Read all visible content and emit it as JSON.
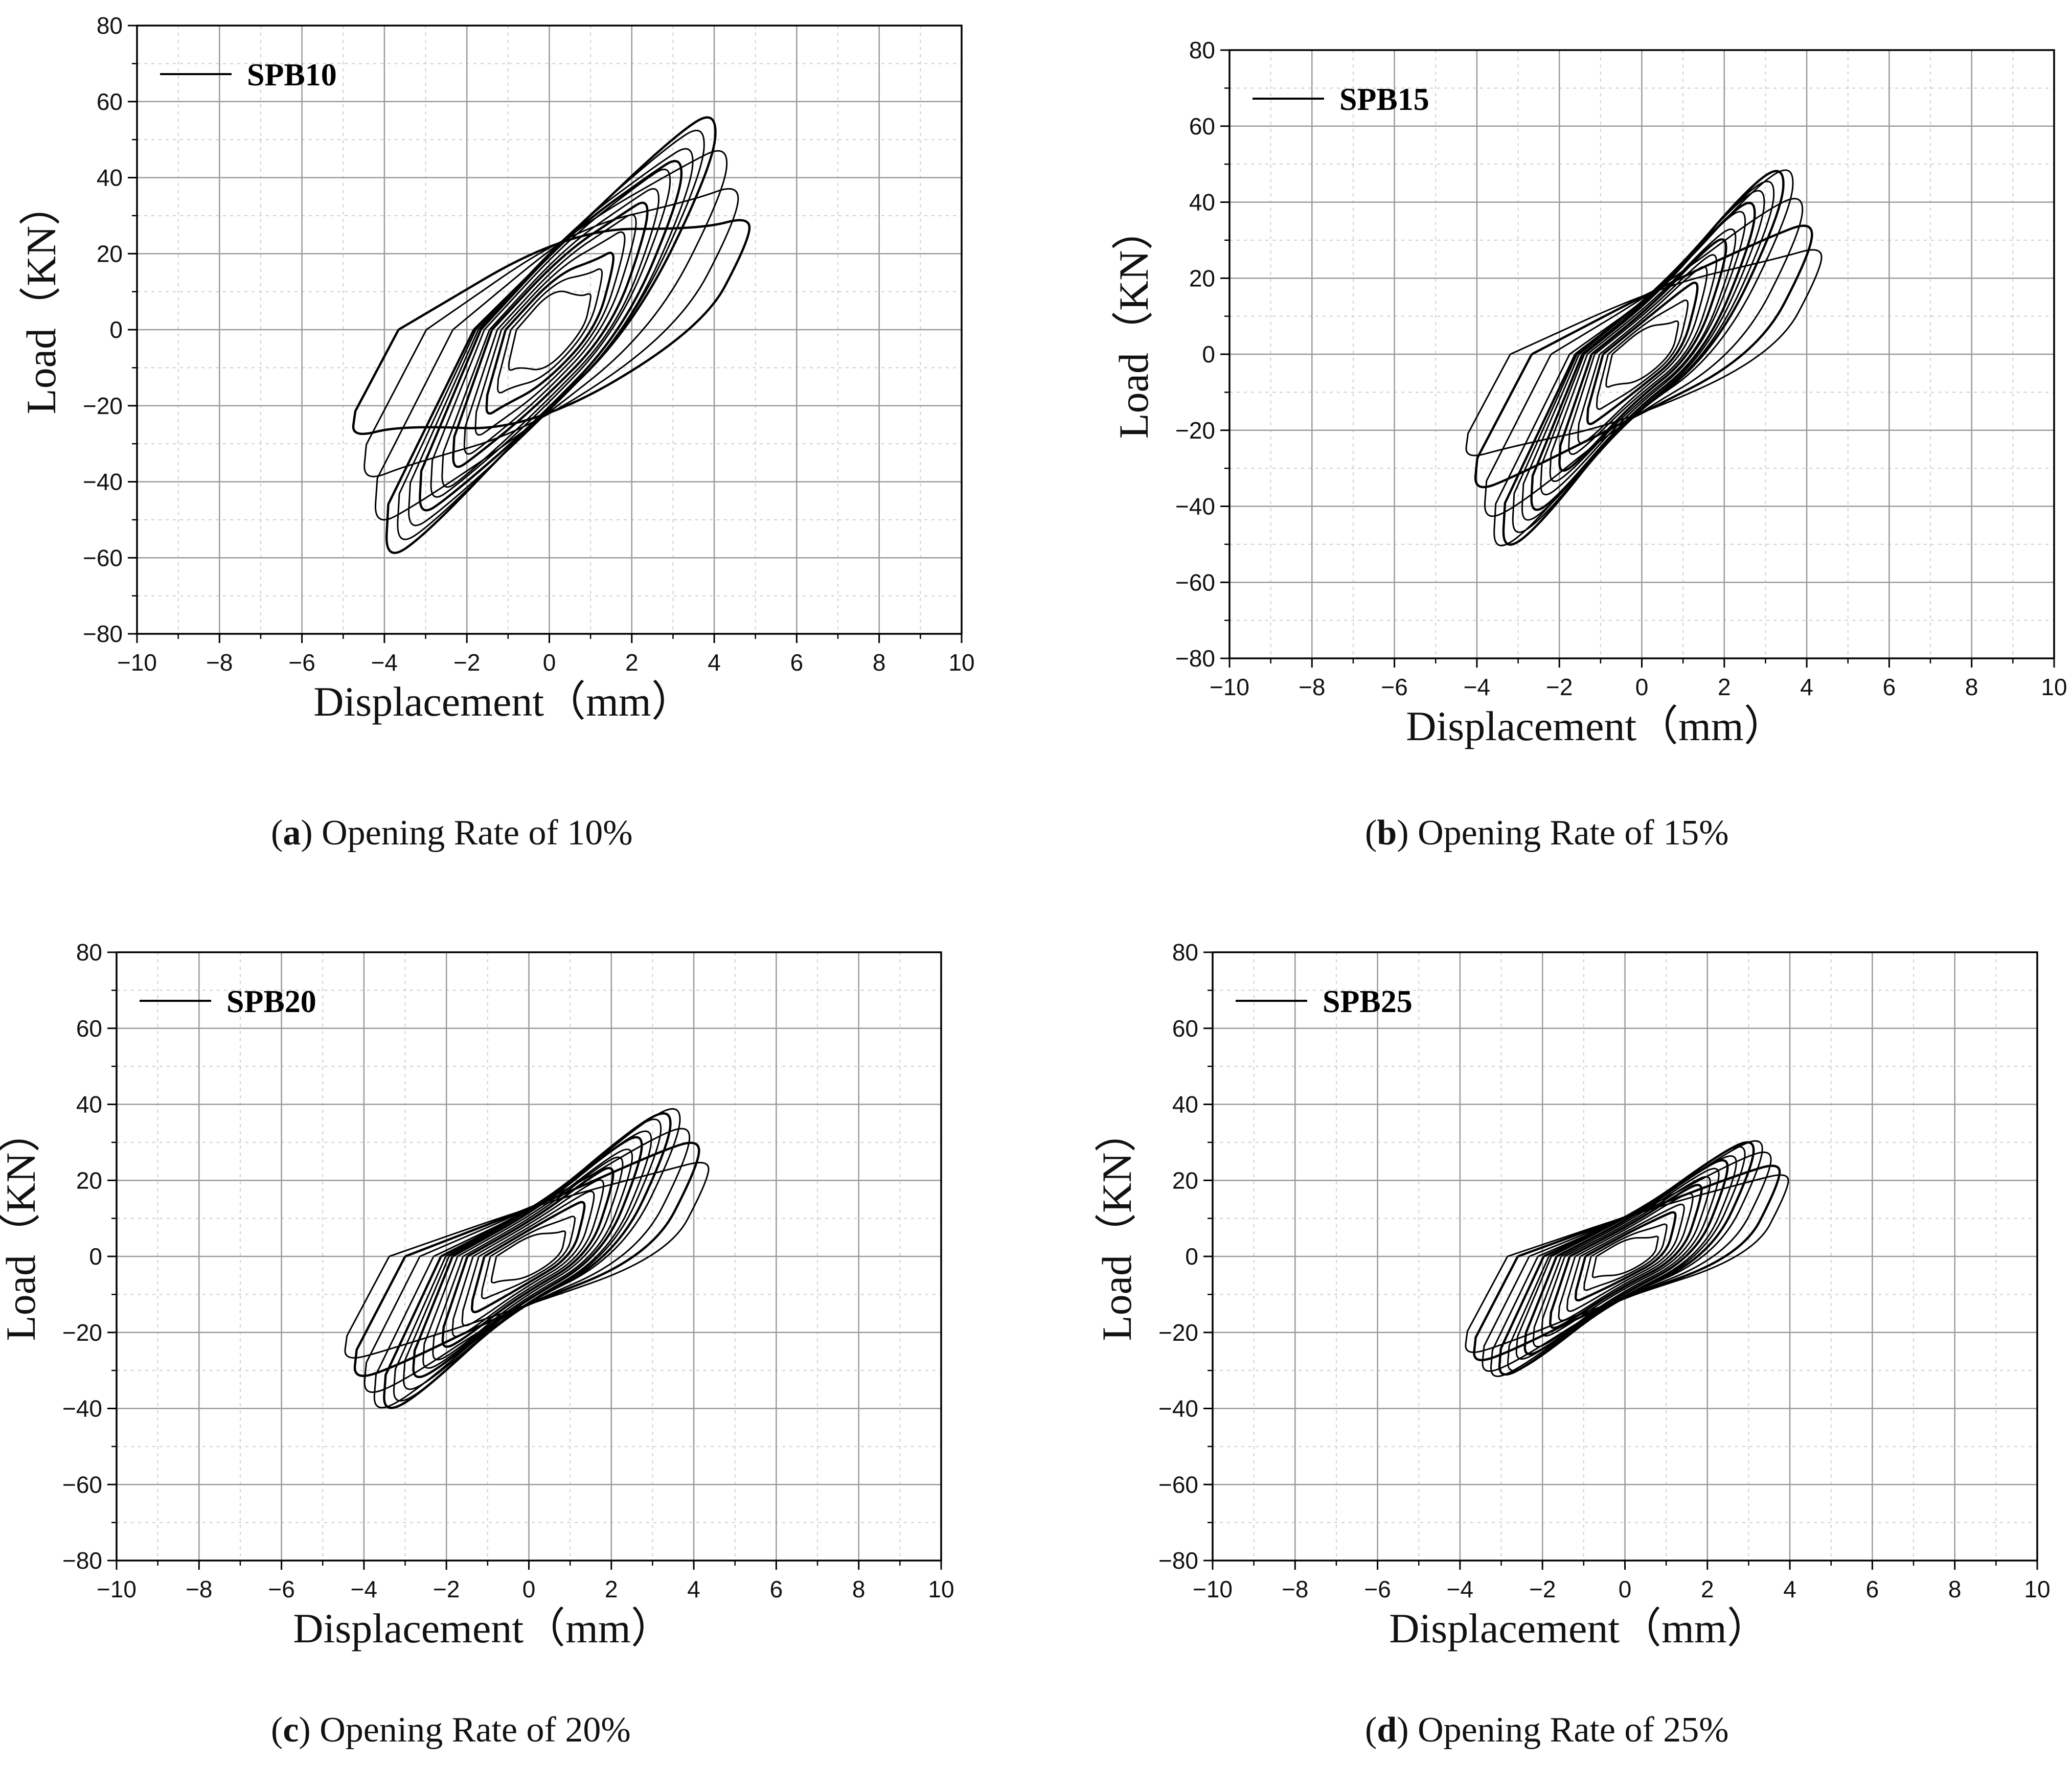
{
  "figure": {
    "panels": [
      {
        "letter": "a",
        "caption": "Opening Rate of 10%"
      },
      {
        "letter": "b",
        "caption": "Opening Rate of 15%"
      },
      {
        "letter": "c",
        "caption": "Opening Rate of 20%"
      },
      {
        "letter": "d",
        "caption": "Opening Rate of 25%"
      }
    ]
  },
  "colors": {
    "line": "#000000",
    "grid_major": "#9a9a9a",
    "grid_minor": "#cfcfcf",
    "frame": "#000000"
  },
  "chart_data": [
    {
      "type": "line",
      "id": "a",
      "title": "",
      "legend": "SPB10",
      "xlabel": "Displacement（mm）",
      "ylabel": "Load（KN）",
      "xlim": [
        -10,
        10
      ],
      "ylim": [
        -80,
        80
      ],
      "xticks": [
        -10,
        -8,
        -6,
        -4,
        -2,
        0,
        2,
        4,
        6,
        8,
        10
      ],
      "yticks": [
        -80,
        -60,
        -40,
        -20,
        0,
        20,
        40,
        60,
        80
      ],
      "x_tick_labels": [
        "−10",
        "−8",
        "−6",
        "−4",
        "−2",
        "0",
        "2",
        "4",
        "6",
        "8",
        "10"
      ],
      "y_tick_labels": [
        "−80",
        "−60",
        "−40",
        "−20",
        "0",
        "20",
        "40",
        "60",
        "80"
      ],
      "grid": true,
      "hysteresis": {
        "cycles": 15,
        "dmax": 4.9,
        "dmin": -4.8,
        "peak_pos": 57,
        "peak_neg": -62,
        "peak_disp_pos": 4.3,
        "peak_disp_neg": -3.3,
        "resid_pos": 30,
        "resid_neg": -29,
        "yield_plateau": 28,
        "pinched": true
      }
    },
    {
      "type": "line",
      "id": "b",
      "title": "",
      "legend": "SPB15",
      "xlabel": "Displacement（mm）",
      "ylabel": "Load（KN）",
      "xlim": [
        -10,
        10
      ],
      "ylim": [
        -80,
        80
      ],
      "xticks": [
        -10,
        -8,
        -6,
        -4,
        -2,
        0,
        2,
        4,
        6,
        8,
        10
      ],
      "yticks": [
        -80,
        -60,
        -40,
        -20,
        0,
        20,
        40,
        60,
        80
      ],
      "x_tick_labels": [
        "−10",
        "−8",
        "−6",
        "−4",
        "−2",
        "0",
        "2",
        "4",
        "6",
        "8",
        "10"
      ],
      "y_tick_labels": [
        "−80",
        "−60",
        "−40",
        "−20",
        "0",
        "20",
        "40",
        "60",
        "80"
      ],
      "grid": true,
      "hysteresis": {
        "cycles": 16,
        "dmax": 4.4,
        "dmin": -4.3,
        "peak_pos": 53,
        "peak_neg": -54,
        "peak_disp_pos": 3.3,
        "peak_disp_neg": -3.1,
        "resid_pos": 28,
        "resid_neg": -28,
        "yield_plateau": 30,
        "pinched": false
      }
    },
    {
      "type": "line",
      "id": "c",
      "title": "",
      "legend": "SPB20",
      "xlabel": "Displacement（mm）",
      "ylabel": "Load（KN）",
      "xlim": [
        -10,
        10
      ],
      "ylim": [
        -80,
        80
      ],
      "xticks": [
        -10,
        -8,
        -6,
        -4,
        -2,
        0,
        2,
        4,
        6,
        8,
        10
      ],
      "yticks": [
        -80,
        -60,
        -40,
        -20,
        0,
        20,
        40,
        60,
        80
      ],
      "x_tick_labels": [
        "−10",
        "−8",
        "−6",
        "−4",
        "−2",
        "0",
        "2",
        "4",
        "6",
        "8",
        "10"
      ],
      "y_tick_labels": [
        "−80",
        "−60",
        "−40",
        "−20",
        "0",
        "20",
        "40",
        "60",
        "80"
      ],
      "grid": true,
      "hysteresis": {
        "cycles": 16,
        "dmax": 4.4,
        "dmin": -4.5,
        "peak_pos": 41,
        "peak_neg": -43,
        "peak_disp_pos": 3.5,
        "peak_disp_neg": -3.5,
        "resid_pos": 26,
        "resid_neg": -28,
        "yield_plateau": 24,
        "pinched": false
      }
    },
    {
      "type": "line",
      "id": "d",
      "title": "",
      "legend": "SPB25",
      "xlabel": "Displacement（mm）",
      "ylabel": "Load（KN）",
      "xlim": [
        -10,
        10
      ],
      "ylim": [
        -80,
        80
      ],
      "xticks": [
        -10,
        -8,
        -6,
        -4,
        -2,
        0,
        2,
        4,
        6,
        8,
        10
      ],
      "yticks": [
        -80,
        -60,
        -40,
        -20,
        0,
        20,
        40,
        60,
        80
      ],
      "x_tick_labels": [
        "−10",
        "−8",
        "−6",
        "−4",
        "−2",
        "0",
        "2",
        "4",
        "6",
        "8",
        "10"
      ],
      "y_tick_labels": [
        "−80",
        "−60",
        "−40",
        "−20",
        "0",
        "20",
        "40",
        "60",
        "80"
      ],
      "grid": true,
      "hysteresis": {
        "cycles": 16,
        "dmax": 4.0,
        "dmin": -3.9,
        "peak_pos": 33,
        "peak_neg": -34,
        "peak_disp_pos": 2.8,
        "peak_disp_neg": -2.9,
        "resid_pos": 22,
        "resid_neg": -26,
        "yield_plateau": 20,
        "pinched": false
      }
    }
  ]
}
